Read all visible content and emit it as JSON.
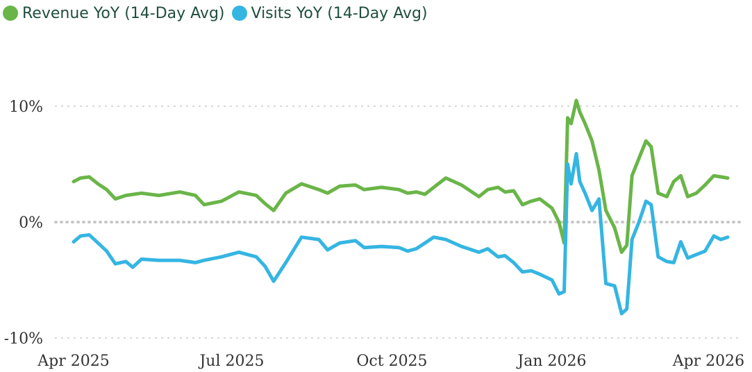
{
  "chart_data": {
    "type": "line",
    "title": "",
    "xlabel": "",
    "ylabel": "",
    "x_tick_labels": [
      "Apr 2025",
      "Jul 2025",
      "Oct 2025",
      "Jan 2026",
      "Apr 2026"
    ],
    "y_tick_labels": [
      "10%",
      "0%",
      "-10%"
    ],
    "y_ticks": [
      10,
      0,
      -10
    ],
    "ylim": [
      -10,
      12
    ],
    "grid": "horizontal dotted",
    "legend_position": "top-left",
    "series": [
      {
        "name": "Revenue YoY (14-Day Avg)",
        "color": "#6ab548",
        "points": [
          [
            "2025-04-01",
            3.5
          ],
          [
            "2025-04-05",
            3.8
          ],
          [
            "2025-04-10",
            3.9
          ],
          [
            "2025-04-15",
            3.3
          ],
          [
            "2025-04-20",
            2.8
          ],
          [
            "2025-04-25",
            2.0
          ],
          [
            "2025-05-01",
            2.3
          ],
          [
            "2025-05-10",
            2.5
          ],
          [
            "2025-05-20",
            2.3
          ],
          [
            "2025-06-01",
            2.6
          ],
          [
            "2025-06-10",
            2.3
          ],
          [
            "2025-06-15",
            1.5
          ],
          [
            "2025-06-25",
            1.8
          ],
          [
            "2025-07-05",
            2.6
          ],
          [
            "2025-07-15",
            2.3
          ],
          [
            "2025-07-20",
            1.6
          ],
          [
            "2025-07-25",
            1.0
          ],
          [
            "2025-08-01",
            2.5
          ],
          [
            "2025-08-10",
            3.3
          ],
          [
            "2025-08-20",
            2.8
          ],
          [
            "2025-08-25",
            2.5
          ],
          [
            "2025-09-01",
            3.1
          ],
          [
            "2025-09-10",
            3.2
          ],
          [
            "2025-09-15",
            2.8
          ],
          [
            "2025-09-25",
            3.0
          ],
          [
            "2025-10-05",
            2.8
          ],
          [
            "2025-10-10",
            2.5
          ],
          [
            "2025-10-15",
            2.6
          ],
          [
            "2025-10-20",
            2.4
          ],
          [
            "2025-10-25",
            3.0
          ],
          [
            "2025-11-01",
            3.8
          ],
          [
            "2025-11-10",
            3.2
          ],
          [
            "2025-11-20",
            2.2
          ],
          [
            "2025-11-25",
            2.8
          ],
          [
            "2025-12-01",
            3.0
          ],
          [
            "2025-12-05",
            2.6
          ],
          [
            "2025-12-10",
            2.7
          ],
          [
            "2025-12-15",
            1.5
          ],
          [
            "2025-12-20",
            1.8
          ],
          [
            "2025-12-25",
            2.0
          ],
          [
            "2026-01-01",
            1.2
          ],
          [
            "2026-01-05",
            0.0
          ],
          [
            "2026-01-08",
            -1.8
          ],
          [
            "2026-01-10",
            9.0
          ],
          [
            "2026-01-12",
            8.5
          ],
          [
            "2026-01-15",
            10.5
          ],
          [
            "2026-01-17",
            9.5
          ],
          [
            "2026-01-20",
            8.5
          ],
          [
            "2026-01-24",
            7.0
          ],
          [
            "2026-01-28",
            4.5
          ],
          [
            "2026-02-01",
            1.0
          ],
          [
            "2026-02-06",
            -0.5
          ],
          [
            "2026-02-10",
            -2.6
          ],
          [
            "2026-02-13",
            -2.0
          ],
          [
            "2026-02-16",
            4.0
          ],
          [
            "2026-02-20",
            5.5
          ],
          [
            "2026-02-24",
            7.0
          ],
          [
            "2026-02-27",
            6.5
          ],
          [
            "2026-03-03",
            2.5
          ],
          [
            "2026-03-08",
            2.2
          ],
          [
            "2026-03-12",
            3.5
          ],
          [
            "2026-03-16",
            4.0
          ],
          [
            "2026-03-20",
            2.2
          ],
          [
            "2026-03-25",
            2.5
          ],
          [
            "2026-03-30",
            3.2
          ],
          [
            "2026-04-04",
            4.0
          ],
          [
            "2026-04-08",
            3.9
          ],
          [
            "2026-04-12",
            3.8
          ]
        ]
      },
      {
        "name": "Visits YoY (14-Day Avg)",
        "color": "#35b5e2",
        "points": [
          [
            "2025-04-01",
            -1.7
          ],
          [
            "2025-04-05",
            -1.2
          ],
          [
            "2025-04-10",
            -1.1
          ],
          [
            "2025-04-15",
            -1.8
          ],
          [
            "2025-04-20",
            -2.5
          ],
          [
            "2025-04-25",
            -3.6
          ],
          [
            "2025-05-01",
            -3.4
          ],
          [
            "2025-05-05",
            -3.9
          ],
          [
            "2025-05-10",
            -3.2
          ],
          [
            "2025-05-20",
            -3.3
          ],
          [
            "2025-06-01",
            -3.3
          ],
          [
            "2025-06-10",
            -3.5
          ],
          [
            "2025-06-15",
            -3.3
          ],
          [
            "2025-06-25",
            -3.0
          ],
          [
            "2025-07-05",
            -2.6
          ],
          [
            "2025-07-15",
            -3.0
          ],
          [
            "2025-07-20",
            -3.8
          ],
          [
            "2025-07-25",
            -5.1
          ],
          [
            "2025-08-01",
            -3.5
          ],
          [
            "2025-08-10",
            -1.3
          ],
          [
            "2025-08-20",
            -1.5
          ],
          [
            "2025-08-25",
            -2.4
          ],
          [
            "2025-09-01",
            -1.8
          ],
          [
            "2025-09-10",
            -1.6
          ],
          [
            "2025-09-15",
            -2.2
          ],
          [
            "2025-09-25",
            -2.1
          ],
          [
            "2025-10-05",
            -2.2
          ],
          [
            "2025-10-10",
            -2.5
          ],
          [
            "2025-10-15",
            -2.3
          ],
          [
            "2025-10-20",
            -1.8
          ],
          [
            "2025-10-25",
            -1.3
          ],
          [
            "2025-11-01",
            -1.5
          ],
          [
            "2025-11-10",
            -2.1
          ],
          [
            "2025-11-20",
            -2.6
          ],
          [
            "2025-11-25",
            -2.3
          ],
          [
            "2025-12-01",
            -3.0
          ],
          [
            "2025-12-05",
            -2.9
          ],
          [
            "2025-12-10",
            -3.5
          ],
          [
            "2025-12-15",
            -4.3
          ],
          [
            "2025-12-20",
            -4.2
          ],
          [
            "2025-12-25",
            -4.5
          ],
          [
            "2026-01-01",
            -5.0
          ],
          [
            "2026-01-05",
            -6.2
          ],
          [
            "2026-01-08",
            -6.0
          ],
          [
            "2026-01-10",
            5.0
          ],
          [
            "2026-01-12",
            3.3
          ],
          [
            "2026-01-15",
            5.9
          ],
          [
            "2026-01-17",
            3.5
          ],
          [
            "2026-01-20",
            2.5
          ],
          [
            "2026-01-24",
            1.0
          ],
          [
            "2026-01-28",
            2.0
          ],
          [
            "2026-02-01",
            -5.3
          ],
          [
            "2026-02-06",
            -5.5
          ],
          [
            "2026-02-10",
            -7.9
          ],
          [
            "2026-02-13",
            -7.5
          ],
          [
            "2026-02-16",
            -1.5
          ],
          [
            "2026-02-20",
            0.0
          ],
          [
            "2026-02-24",
            1.8
          ],
          [
            "2026-02-27",
            1.5
          ],
          [
            "2026-03-03",
            -3.0
          ],
          [
            "2026-03-08",
            -3.4
          ],
          [
            "2026-03-12",
            -3.5
          ],
          [
            "2026-03-16",
            -1.7
          ],
          [
            "2026-03-20",
            -3.1
          ],
          [
            "2026-03-25",
            -2.8
          ],
          [
            "2026-03-30",
            -2.5
          ],
          [
            "2026-04-04",
            -1.2
          ],
          [
            "2026-04-08",
            -1.5
          ],
          [
            "2026-04-12",
            -1.3
          ]
        ]
      }
    ]
  }
}
